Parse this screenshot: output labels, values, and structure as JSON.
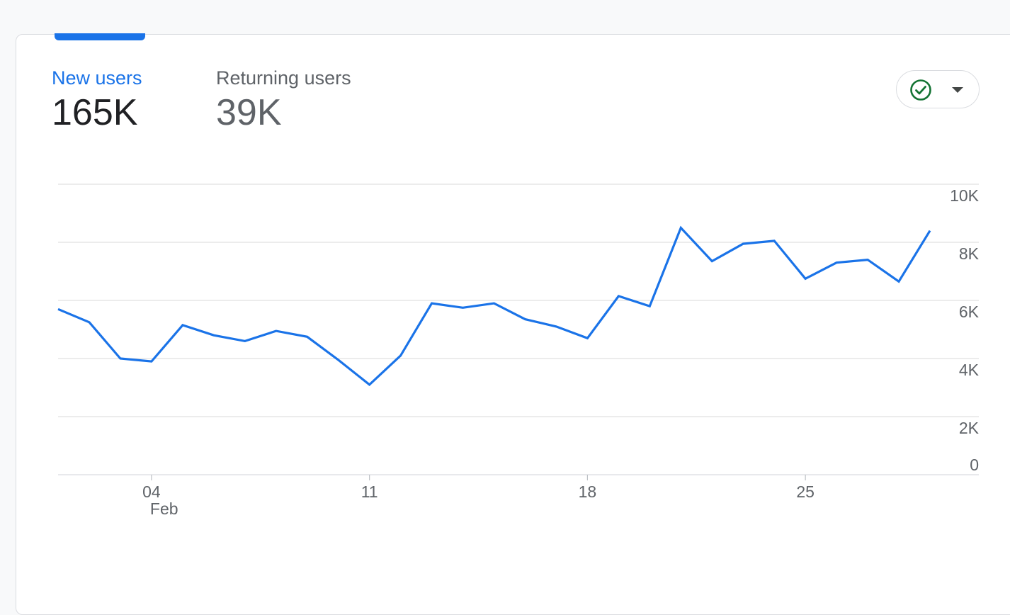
{
  "metrics": {
    "new_users": {
      "label": "New users",
      "value": "165K"
    },
    "returning_users": {
      "label": "Returning users",
      "value": "39K"
    }
  },
  "compare_button": {
    "icon": "check-circle-icon",
    "dropdown_icon": "caret-down-icon",
    "check_color": "#137333"
  },
  "colors": {
    "accent": "#1a73e8",
    "line": "#1a73e8",
    "grid": "#e0e0e0",
    "text_muted": "#5f6368"
  },
  "chart_data": {
    "type": "line",
    "title": "",
    "xlabel": "",
    "ylabel": "",
    "ylim": [
      0,
      10000
    ],
    "y_ticks": [
      {
        "value": 10000,
        "label": "10K"
      },
      {
        "value": 8000,
        "label": "8K"
      },
      {
        "value": 6000,
        "label": "6K"
      },
      {
        "value": 4000,
        "label": "4K"
      },
      {
        "value": 2000,
        "label": "2K"
      },
      {
        "value": 0,
        "label": "0"
      }
    ],
    "x_ticks": [
      {
        "label": "04",
        "sublabel": "Feb",
        "day_index": 3
      },
      {
        "label": "11",
        "sublabel": "",
        "day_index": 10
      },
      {
        "label": "18",
        "sublabel": "",
        "day_index": 17
      },
      {
        "label": "25",
        "sublabel": "",
        "day_index": 24
      }
    ],
    "grid": true,
    "series": [
      {
        "values": [
          5700,
          5250,
          4000,
          3900,
          5150,
          4800,
          4600,
          4950,
          4750,
          3950,
          3100,
          4100,
          5900,
          5750,
          5900,
          5350,
          5100,
          4700,
          6150,
          5800,
          8500,
          7350,
          7950,
          8050,
          6750,
          7300,
          7400,
          6650,
          8400
        ]
      }
    ]
  }
}
